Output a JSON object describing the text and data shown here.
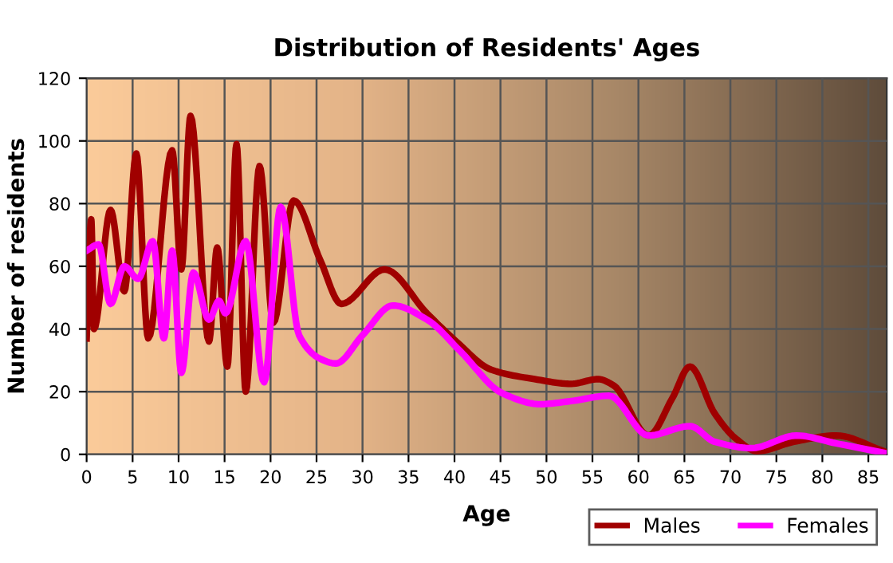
{
  "chart_data": {
    "type": "line",
    "title": "Distribution of Residents' Ages",
    "xlabel": "Age",
    "ylabel": "Number of residents",
    "xlim": [
      0,
      87
    ],
    "xticks": [
      0,
      5,
      10,
      15,
      20,
      25,
      30,
      35,
      40,
      45,
      50,
      55,
      60,
      65,
      70,
      75,
      80,
      85
    ],
    "ylim": [
      0,
      120
    ],
    "yticks": [
      0,
      20,
      40,
      60,
      80,
      100,
      120
    ],
    "grid": true,
    "legend": "bottom right",
    "marker": "none",
    "line_style": "solid",
    "series": [
      {
        "name": "Males",
        "color": "#a00000",
        "x": [
          0,
          0.5,
          0.8,
          2.6,
          4.1,
          5.4,
          6.7,
          9.3,
          10.3,
          11.3,
          13.3,
          14.2,
          15.3,
          16.3,
          17.3,
          18.8,
          20.3,
          22.5,
          25.4,
          27.7,
          32.4,
          37,
          40.2,
          44,
          48.7,
          52.7,
          55.6,
          57.3,
          61.1,
          63.7,
          65.6,
          68.3,
          70.6,
          72.9,
          76.9,
          81.5,
          86.7
        ],
        "values": [
          37,
          75,
          40,
          78,
          52,
          96,
          37,
          97,
          59,
          108,
          36,
          66,
          28,
          99,
          20,
          92,
          42,
          81,
          62,
          48,
          59,
          45,
          36,
          27,
          24,
          22.5,
          24,
          22,
          6,
          18,
          28,
          13,
          5,
          1,
          4,
          6,
          1
        ]
      },
      {
        "name": "Females",
        "color": "#ff00ff",
        "x": [
          0,
          1.3,
          2.6,
          4.1,
          5.6,
          7.2,
          8.4,
          9.3,
          10.3,
          11.6,
          13.3,
          14.4,
          15.1,
          17.3,
          19.3,
          21.1,
          23.1,
          25.4,
          27.1,
          30,
          33.3,
          37,
          40.6,
          45.2,
          49.3,
          52.7,
          56.8,
          61.1,
          65.6,
          68.3,
          72.3,
          77.2,
          81.5,
          86.7
        ],
        "values": [
          65,
          67,
          48,
          60,
          56,
          68,
          37,
          65,
          26,
          58,
          43,
          49,
          45,
          68,
          23,
          79,
          38,
          30.5,
          29,
          38,
          47.5,
          43,
          33,
          19.5,
          16,
          17,
          18.7,
          6,
          9,
          4,
          2,
          6,
          3.5,
          0.5
        ]
      }
    ]
  }
}
